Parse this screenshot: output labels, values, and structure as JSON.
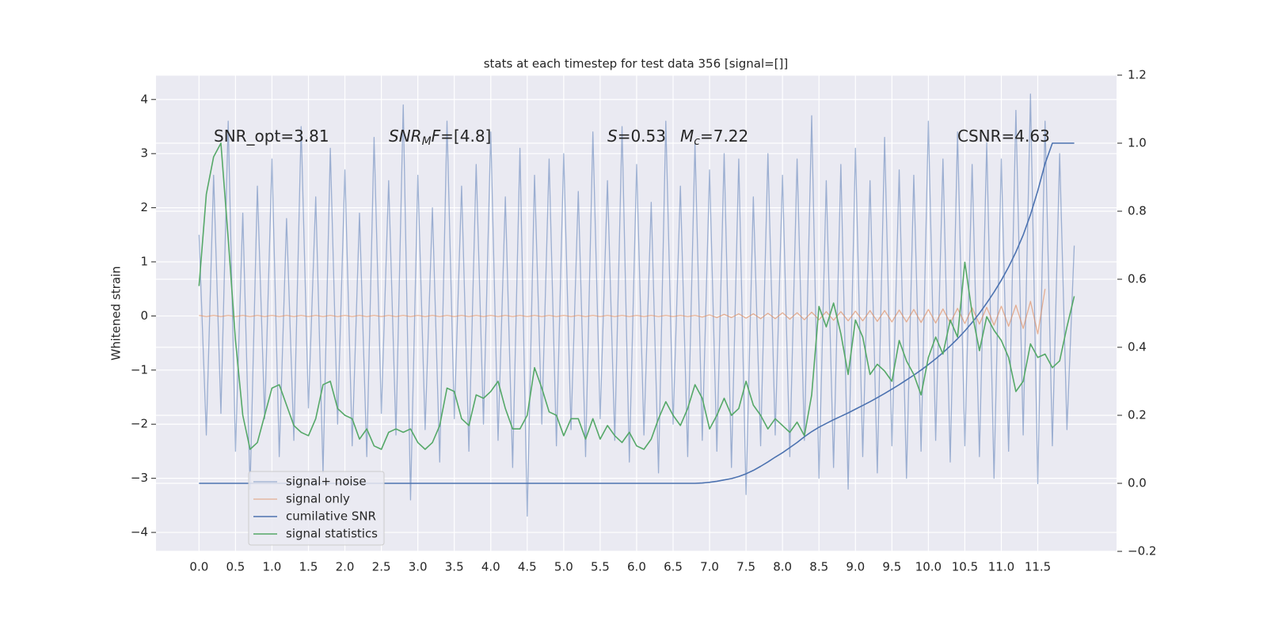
{
  "chart_data": {
    "type": "line",
    "title": "stats at each timestep for test data 356 [signal=[]]",
    "y_label": "Whitened strain",
    "x": [
      0.0,
      0.1,
      0.2,
      0.3,
      0.4,
      0.5,
      0.6,
      0.7,
      0.8,
      0.9,
      1.0,
      1.1,
      1.2,
      1.3,
      1.4,
      1.5,
      1.6,
      1.7,
      1.8,
      1.9,
      2.0,
      2.1,
      2.2,
      2.3,
      2.4,
      2.5,
      2.6,
      2.7,
      2.8,
      2.9,
      3.0,
      3.1,
      3.2,
      3.3,
      3.4,
      3.5,
      3.6,
      3.7,
      3.8,
      3.9,
      4.0,
      4.1,
      4.2,
      4.3,
      4.4,
      4.5,
      4.6,
      4.7,
      4.8,
      4.9,
      5.0,
      5.1,
      5.2,
      5.3,
      5.4,
      5.5,
      5.6,
      5.7,
      5.8,
      5.9,
      6.0,
      6.1,
      6.2,
      6.3,
      6.4,
      6.5,
      6.6,
      6.7,
      6.8,
      6.9,
      7.0,
      7.1,
      7.2,
      7.3,
      7.4,
      7.5,
      7.6,
      7.7,
      7.8,
      7.9,
      8.0,
      8.1,
      8.2,
      8.3,
      8.4,
      8.5,
      8.6,
      8.7,
      8.8,
      8.9,
      9.0,
      9.1,
      9.2,
      9.3,
      9.4,
      9.5,
      9.6,
      9.7,
      9.8,
      9.9,
      10.0,
      10.1,
      10.2,
      10.3,
      10.4,
      10.5,
      10.6,
      10.7,
      10.8,
      10.9,
      11.0,
      11.1,
      11.2,
      11.3,
      11.4,
      11.5,
      11.6,
      11.7,
      11.8,
      11.9,
      12.0
    ],
    "series": [
      {
        "name": "signal+ noise",
        "color": "#4c72b0",
        "values": [
          1.5,
          -2.2,
          2.6,
          -1.8,
          3.6,
          -2.5,
          1.9,
          -3.2,
          2.4,
          -1.9,
          2.9,
          -2.6,
          1.8,
          -2.3,
          3.5,
          -1.7,
          2.2,
          -2.9,
          3.1,
          -2.0,
          2.7,
          -2.4,
          1.9,
          -2.6,
          3.3,
          -1.8,
          2.5,
          -2.2,
          3.9,
          -3.4,
          2.6,
          -2.1,
          2.0,
          -2.7,
          3.6,
          -1.9,
          2.4,
          -2.5,
          2.8,
          -2.0,
          3.4,
          -2.3,
          2.2,
          -2.8,
          3.1,
          -3.7,
          2.6,
          -2.0,
          2.9,
          -2.4,
          3.0,
          -2.1,
          2.3,
          -2.6,
          3.4,
          -1.9,
          2.5,
          -2.3,
          3.5,
          -2.7,
          2.8,
          -2.2,
          2.1,
          -2.9,
          3.6,
          -2.0,
          2.4,
          -2.6,
          3.2,
          -2.3,
          2.7,
          -2.5,
          3.0,
          -2.8,
          2.9,
          -3.3,
          2.2,
          -2.4,
          3.0,
          -2.2,
          2.6,
          -2.6,
          2.9,
          -2.3,
          3.7,
          -3.0,
          2.5,
          -2.8,
          2.8,
          -3.2,
          3.1,
          -2.6,
          2.5,
          -2.9,
          3.3,
          -2.4,
          2.7,
          -3.0,
          2.6,
          -2.5,
          3.6,
          -2.3,
          2.9,
          -2.7,
          3.4,
          -2.4,
          2.8,
          -2.6,
          3.2,
          -3.0,
          2.9,
          -2.5,
          3.8,
          -2.2,
          4.1,
          -3.1,
          3.6,
          -2.4,
          3.0,
          -2.1,
          1.3
        ]
      },
      {
        "name": "signal only",
        "color": "#dd8452",
        "values": [
          0.01,
          -0.01,
          0.01,
          -0.01,
          0.01,
          -0.01,
          0.01,
          -0.01,
          0.01,
          -0.01,
          0.01,
          -0.01,
          0.01,
          -0.01,
          0.01,
          -0.01,
          0.01,
          -0.01,
          0.01,
          -0.01,
          0.01,
          -0.01,
          0.01,
          -0.01,
          0.01,
          -0.01,
          0.01,
          -0.01,
          0.01,
          -0.01,
          0.01,
          -0.01,
          0.01,
          -0.01,
          0.01,
          -0.01,
          0.01,
          -0.01,
          0.01,
          -0.01,
          0.01,
          -0.01,
          0.01,
          -0.01,
          0.01,
          -0.01,
          0.01,
          -0.01,
          0.01,
          -0.01,
          0.01,
          -0.01,
          0.01,
          -0.01,
          0.01,
          -0.01,
          0.01,
          -0.01,
          0.01,
          -0.01,
          0.01,
          -0.01,
          0.01,
          -0.01,
          0.01,
          -0.01,
          0.01,
          -0.01,
          0.01,
          -0.02,
          0.02,
          -0.03,
          0.03,
          -0.03,
          0.04,
          -0.04,
          0.04,
          -0.05,
          0.05,
          -0.05,
          0.06,
          -0.06,
          0.06,
          -0.07,
          0.07,
          -0.07,
          0.08,
          -0.08,
          0.08,
          -0.09,
          0.09,
          -0.09,
          0.1,
          -0.1,
          0.1,
          -0.11,
          0.11,
          -0.11,
          0.12,
          -0.12,
          0.12,
          -0.13,
          0.13,
          -0.13,
          0.14,
          -0.14,
          0.15,
          -0.15,
          0.16,
          -0.17,
          0.18,
          -0.19,
          0.2,
          -0.23,
          0.27,
          -0.33,
          0.5,
          null,
          null,
          null,
          null
        ]
      },
      {
        "name": "cumilative SNR",
        "color": "#4c72b0",
        "axis": "y2",
        "values": [
          0,
          0,
          0,
          0,
          0,
          0,
          0,
          0,
          0,
          0,
          0,
          0,
          0,
          0,
          0,
          0,
          0,
          0,
          0,
          0,
          0,
          0,
          0,
          0,
          0,
          0,
          0,
          0,
          0,
          0,
          0,
          0,
          0,
          0,
          0,
          0,
          0,
          0,
          0,
          0,
          0,
          0,
          0,
          0,
          0,
          0,
          0,
          0,
          0,
          0,
          0,
          0,
          0,
          0,
          0,
          0,
          0,
          0,
          0,
          0,
          0,
          0,
          0,
          0,
          0,
          0,
          0,
          0,
          0,
          0.001,
          0.003,
          0.006,
          0.01,
          0.014,
          0.02,
          0.028,
          0.038,
          0.05,
          0.063,
          0.077,
          0.09,
          0.105,
          0.12,
          0.137,
          0.152,
          0.165,
          0.176,
          0.187,
          0.197,
          0.207,
          0.218,
          0.229,
          0.24,
          0.252,
          0.264,
          0.277,
          0.29,
          0.304,
          0.318,
          0.333,
          0.349,
          0.366,
          0.384,
          0.404,
          0.425,
          0.448,
          0.473,
          0.5,
          0.53,
          0.562,
          0.597,
          0.636,
          0.68,
          0.73,
          0.79,
          0.86,
          0.94,
          1.0,
          1.0,
          1.0,
          1.0
        ]
      },
      {
        "name": "signal statistics",
        "color": "#55a868",
        "axis": "y2",
        "values": [
          0.58,
          0.85,
          0.96,
          1.0,
          0.72,
          0.42,
          0.2,
          0.1,
          0.12,
          0.2,
          0.28,
          0.29,
          0.23,
          0.17,
          0.15,
          0.14,
          0.19,
          0.29,
          0.3,
          0.22,
          0.2,
          0.19,
          0.13,
          0.16,
          0.11,
          0.1,
          0.15,
          0.16,
          0.15,
          0.16,
          0.12,
          0.1,
          0.12,
          0.17,
          0.28,
          0.27,
          0.19,
          0.17,
          0.26,
          0.25,
          0.27,
          0.3,
          0.22,
          0.16,
          0.16,
          0.2,
          0.34,
          0.28,
          0.21,
          0.2,
          0.14,
          0.19,
          0.19,
          0.13,
          0.19,
          0.13,
          0.17,
          0.14,
          0.12,
          0.15,
          0.11,
          0.1,
          0.13,
          0.19,
          0.24,
          0.2,
          0.17,
          0.22,
          0.29,
          0.25,
          0.16,
          0.2,
          0.25,
          0.2,
          0.22,
          0.3,
          0.23,
          0.2,
          0.16,
          0.19,
          0.17,
          0.15,
          0.18,
          0.14,
          0.26,
          0.52,
          0.46,
          0.53,
          0.44,
          0.32,
          0.48,
          0.43,
          0.32,
          0.35,
          0.33,
          0.3,
          0.42,
          0.36,
          0.32,
          0.26,
          0.37,
          0.43,
          0.38,
          0.48,
          0.43,
          0.65,
          0.5,
          0.39,
          0.49,
          0.45,
          0.42,
          0.37,
          0.27,
          0.3,
          0.41,
          0.37,
          0.38,
          0.34,
          0.36,
          0.46,
          0.55
        ]
      }
    ],
    "xlim": [
      -0.59,
      12.58
    ],
    "xticks": [
      {
        "value": 0,
        "label": "0.0"
      },
      0.5,
      {
        "value": 1,
        "label": "1.0"
      },
      1.5,
      {
        "value": 2,
        "label": "2.0"
      },
      2.5,
      {
        "value": 3,
        "label": "3.0"
      },
      3.5,
      {
        "value": 4,
        "label": "4.0"
      },
      4.5,
      {
        "value": 5,
        "label": "5.0"
      },
      5.5,
      {
        "value": 6,
        "label": "6.0"
      },
      6.5,
      {
        "value": 7,
        "label": "7.0"
      },
      7.5,
      {
        "value": 8,
        "label": "8.0"
      },
      8.5,
      {
        "value": 9,
        "label": "9.0"
      },
      9.5,
      {
        "value": 10,
        "label": "10.0"
      },
      10.5,
      {
        "value": 11,
        "label": "11.0"
      },
      11.5
    ],
    "ylim": [
      -4.35,
      4.45
    ],
    "yticks": [
      {
        "value": -4,
        "label": "−4"
      },
      {
        "value": -3,
        "label": "−3"
      },
      {
        "value": -2,
        "label": "−2"
      },
      {
        "value": -1,
        "label": "−1"
      },
      0,
      1,
      2,
      3,
      4
    ],
    "y2lim": [
      -0.2,
      1.2
    ],
    "y2ticks": [
      {
        "value": -0.2,
        "label": "−0.2"
      },
      {
        "value": 0,
        "label": "0.0"
      },
      0.2,
      0.4,
      0.6,
      0.8,
      {
        "value": 1,
        "label": "1.0"
      },
      {
        "value": 1.2,
        "label": "1.2"
      }
    ],
    "grid": true,
    "legend": "lower left",
    "annotations": [
      [
        "SNR_opt=3.81"
      ],
      [
        "SNR",
        "M",
        "F",
        "=[4.8]"
      ],
      [
        "S",
        "=0.53"
      ],
      [
        "M",
        "c",
        "=7.22"
      ],
      [
        "CSNR=4.63"
      ]
    ]
  }
}
